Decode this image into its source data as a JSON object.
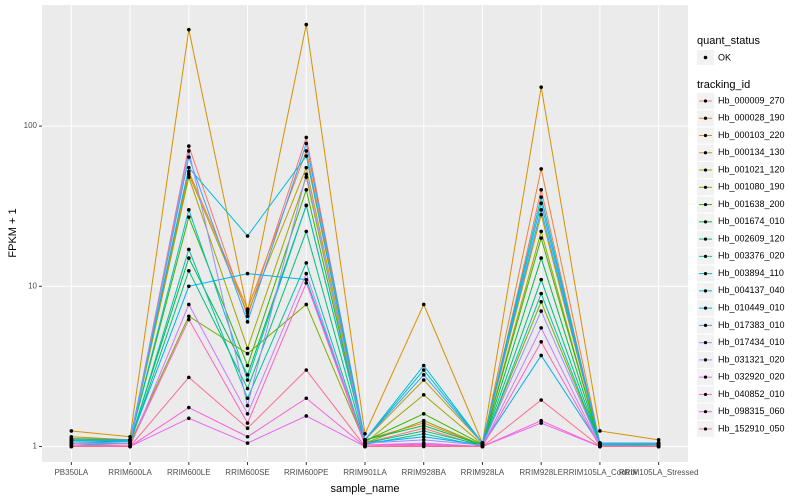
{
  "chart_data": {
    "type": "line",
    "x_label": "sample_name",
    "y_label": "FPKM + 1",
    "categories": [
      "PB350LA",
      "RRIM600LA",
      "RRIM600LE",
      "RRIM600SE",
      "RRIM600PE",
      "RRIM901LA",
      "RRIM928BA",
      "RRIM928LA",
      "RRIM928LE",
      "RRIM105LA_Control",
      "RRIM105LA_Stressed"
    ],
    "log_y": true,
    "ylim": [
      0.8,
      570
    ],
    "yticks": [
      1,
      10,
      100
    ],
    "grid": true,
    "point_legend_title": "quant_status",
    "point_legend_label": "OK",
    "legend_title": "tracking_id",
    "legend_position": "right",
    "series": [
      {
        "name": "Hb_000009_270",
        "color": "#F8766D",
        "values": [
          1.05,
          1.05,
          75,
          6.5,
          85,
          1.05,
          1.3,
          1.0,
          40,
          1.02,
          1.0
        ]
      },
      {
        "name": "Hb_000028_190",
        "color": "#EA8331",
        "values": [
          1.1,
          1.1,
          52,
          7.2,
          70,
          1.1,
          1.4,
          1.02,
          54,
          1.05,
          1.05
        ]
      },
      {
        "name": "Hb_000103_220",
        "color": "#D89000",
        "values": [
          1.25,
          1.15,
          400,
          7,
          430,
          1.2,
          7.7,
          1.05,
          175,
          1.25,
          1.1
        ]
      },
      {
        "name": "Hb_000134_130",
        "color": "#C09B00",
        "values": [
          1.15,
          1.1,
          50,
          6.8,
          55,
          1.1,
          2.6,
          1.05,
          28,
          1.05,
          1.05
        ]
      },
      {
        "name": "Hb_001021_120",
        "color": "#A3A500",
        "values": [
          1.1,
          1.08,
          48,
          4.1,
          48,
          1.05,
          2.1,
          1.03,
          22,
          1.03,
          1.02
        ]
      },
      {
        "name": "Hb_001080_190",
        "color": "#7CAE00",
        "values": [
          1.05,
          1.05,
          6.5,
          3.8,
          7.7,
          1.05,
          1.45,
          1.02,
          8,
          1.02,
          1.02
        ]
      },
      {
        "name": "Hb_001638_200",
        "color": "#39B600",
        "values": [
          1.12,
          1.1,
          27,
          3.2,
          40,
          1.08,
          1.6,
          1.03,
          20,
          1.05,
          1.05
        ]
      },
      {
        "name": "Hb_001674_010",
        "color": "#00BB4E",
        "values": [
          1.08,
          1.08,
          15,
          2.8,
          32,
          1.1,
          1.35,
          1.02,
          15,
          1.03,
          1.03
        ]
      },
      {
        "name": "Hb_002609_120",
        "color": "#00BF7D",
        "values": [
          1.05,
          1.05,
          12.5,
          2.3,
          22,
          1.05,
          1.25,
          1.02,
          11,
          1.03,
          1.02
        ]
      },
      {
        "name": "Hb_003376_020",
        "color": "#00C1A3",
        "values": [
          1.02,
          1.05,
          17,
          2,
          14,
          1.03,
          1.2,
          1.0,
          9,
          1.02,
          1.0
        ]
      },
      {
        "name": "Hb_003894_110",
        "color": "#00BFC4",
        "values": [
          1.1,
          1.1,
          30,
          2.6,
          32,
          1.1,
          3.0,
          1.05,
          36,
          1.05,
          1.05
        ]
      },
      {
        "name": "Hb_004137_040",
        "color": "#00BAE0",
        "values": [
          1.08,
          1.1,
          55,
          20.6,
          65,
          1.1,
          3.2,
          1.05,
          33,
          1.05,
          1.05
        ]
      },
      {
        "name": "Hb_010449_010",
        "color": "#00B0F6",
        "values": [
          1.05,
          1.08,
          10,
          12,
          11,
          1.05,
          1.15,
          1.02,
          3.7,
          1.02,
          1.02
        ]
      },
      {
        "name": "Hb_017383_010",
        "color": "#35A2FF",
        "values": [
          1.1,
          1.1,
          64,
          6,
          78,
          1.1,
          2.8,
          1.05,
          30,
          1.05,
          1.05
        ]
      },
      {
        "name": "Hb_017434_010",
        "color": "#9590FF",
        "values": [
          1.05,
          1.05,
          70,
          1.8,
          50,
          1.05,
          1.1,
          1.02,
          7,
          1.02,
          1.02
        ]
      },
      {
        "name": "Hb_031321_020",
        "color": "#C77CFF",
        "values": [
          1.02,
          1.0,
          7.7,
          1.6,
          12,
          1.02,
          1.05,
          1.0,
          5.5,
          1.0,
          1.0
        ]
      },
      {
        "name": "Hb_032920_020",
        "color": "#E76BF3",
        "values": [
          1.0,
          1.0,
          1.5,
          1.05,
          1.55,
          1.0,
          1.02,
          1.0,
          1.4,
          1.0,
          1.0
        ]
      },
      {
        "name": "Hb_040852_010",
        "color": "#FA62DB",
        "values": [
          1.0,
          1.0,
          1.75,
          1.15,
          2,
          1.0,
          1.02,
          1.0,
          1.45,
          1.0,
          1.0
        ]
      },
      {
        "name": "Hb_098315_060",
        "color": "#FF62BC",
        "values": [
          1.02,
          1.02,
          6.2,
          1.4,
          10.5,
          1.02,
          1.03,
          1.0,
          4.5,
          1.0,
          1.0
        ]
      },
      {
        "name": "Hb_152910_050",
        "color": "#FF6C91",
        "values": [
          1.0,
          1.0,
          2.7,
          1.3,
          3,
          1.0,
          1.0,
          1.0,
          1.95,
          1.0,
          1.0
        ]
      }
    ]
  }
}
